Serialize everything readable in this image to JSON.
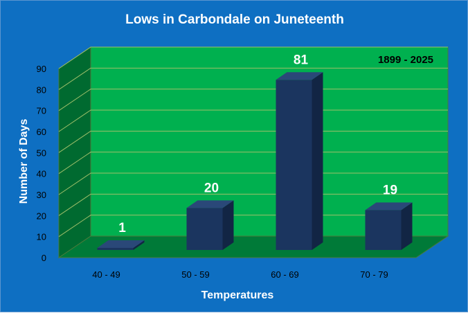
{
  "colors": {
    "background": "#0e6fc2",
    "back_wall": "#00b04f",
    "side_wall": "#006a30",
    "floor": "#007a38",
    "bar_front": "#1b355f",
    "bar_top": "#2a4878",
    "bar_side": "#122544",
    "gridline": "#9fbf6a"
  },
  "chart_data": {
    "type": "bar",
    "style": "3d-column",
    "title": "Lows in Carbondale on Juneteenth",
    "annotation": "1899 - 2025",
    "xlabel": "Temperatures",
    "ylabel": "Number of Days",
    "categories": [
      "40 - 49",
      "50 - 59",
      "60 - 69",
      "70 - 79"
    ],
    "values": [
      1,
      20,
      81,
      19
    ],
    "data_labels": [
      "1",
      "20",
      "81",
      "19"
    ],
    "ylim": [
      0,
      90
    ],
    "yticks": [
      "0",
      "10",
      "20",
      "30",
      "40",
      "50",
      "60",
      "70",
      "80",
      "90"
    ],
    "grid": true,
    "legend": "none"
  }
}
